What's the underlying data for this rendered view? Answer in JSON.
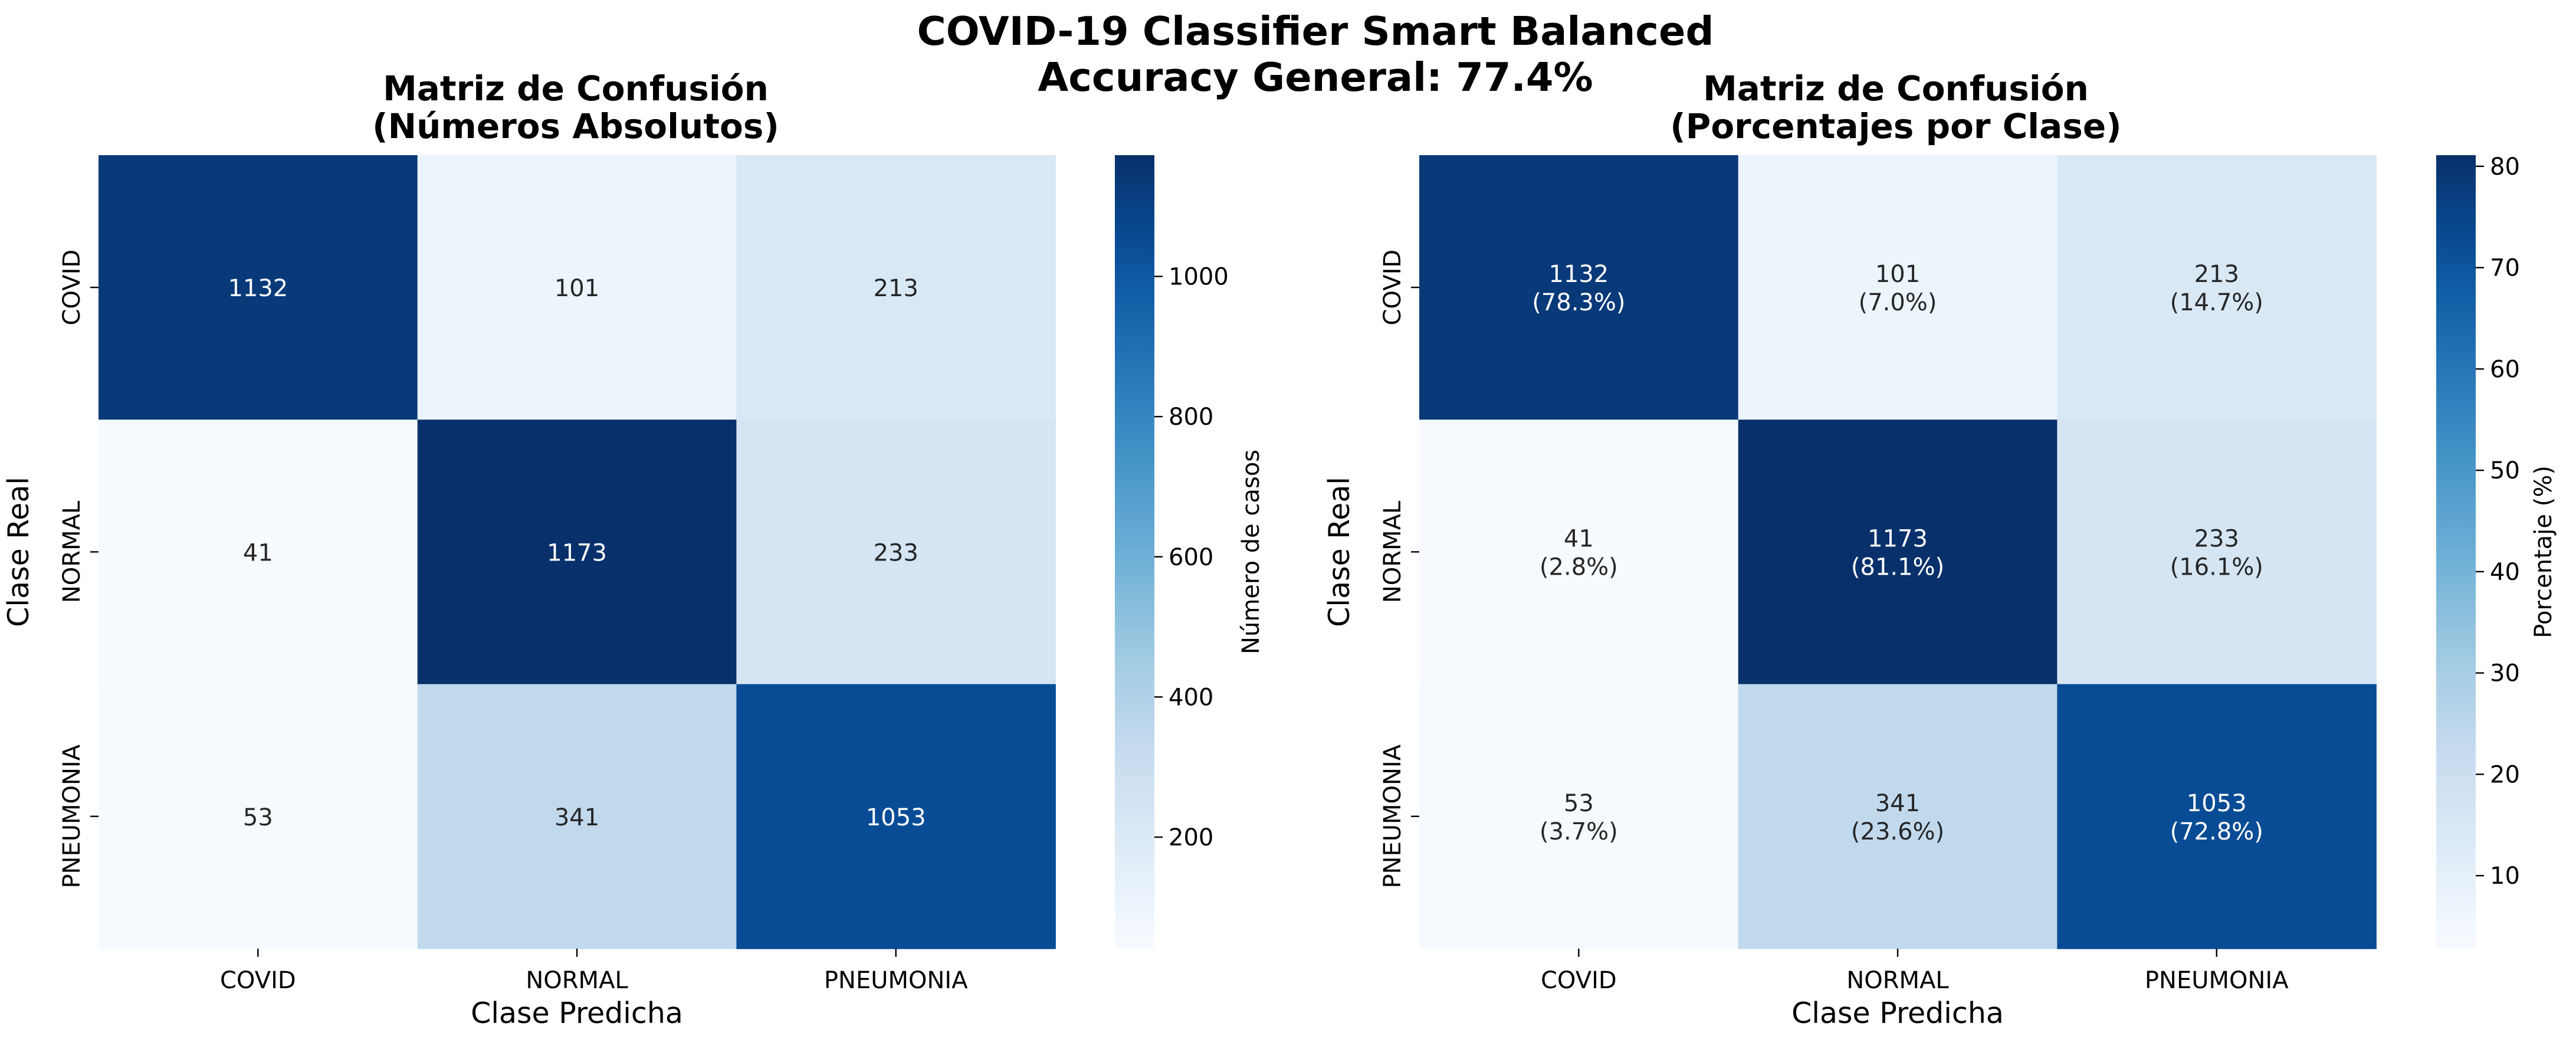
{
  "figure": {
    "title_line1": "COVID-19 Classifier Smart Balanced",
    "title_line2": "Accuracy General: 77.4%"
  },
  "chart_data": [
    {
      "type": "heatmap",
      "title": "Matriz de Confusión\n(Números Absolutos)",
      "title_lines": [
        "Matriz de Confusión",
        "(Números Absolutos)"
      ],
      "xlabel": "Clase Predicha",
      "ylabel": "Clase Real",
      "x_categories": [
        "COVID",
        "NORMAL",
        "PNEUMONIA"
      ],
      "y_categories": [
        "COVID",
        "NORMAL",
        "PNEUMONIA"
      ],
      "values": [
        [
          1132,
          101,
          213
        ],
        [
          41,
          1173,
          233
        ],
        [
          53,
          341,
          1053
        ]
      ],
      "cell_labels": [
        [
          "1132",
          "101",
          "213"
        ],
        [
          "41",
          "1173",
          "233"
        ],
        [
          "53",
          "341",
          "1053"
        ]
      ],
      "colorscale": "Blues",
      "vmin": 41,
      "vmax": 1173,
      "colorbar": {
        "label": "Número de casos",
        "ticks": [
          200,
          400,
          600,
          800,
          1000
        ],
        "tick_labels": [
          "200",
          "400",
          "600",
          "800",
          "1000"
        ]
      }
    },
    {
      "type": "heatmap",
      "title": "Matriz de Confusión\n(Porcentajes por Clase)",
      "title_lines": [
        "Matriz de Confusión",
        "(Porcentajes por Clase)"
      ],
      "xlabel": "Clase Predicha",
      "ylabel": "Clase Real",
      "x_categories": [
        "COVID",
        "NORMAL",
        "PNEUMONIA"
      ],
      "y_categories": [
        "COVID",
        "NORMAL",
        "PNEUMONIA"
      ],
      "values": [
        [
          78.3,
          7.0,
          14.7
        ],
        [
          2.8,
          81.1,
          16.1
        ],
        [
          3.7,
          23.6,
          72.8
        ]
      ],
      "cell_labels": [
        [
          [
            "1132",
            "(78.3%)"
          ],
          [
            "101",
            "(7.0%)"
          ],
          [
            "213",
            "(14.7%)"
          ]
        ],
        [
          [
            "41",
            "(2.8%)"
          ],
          [
            "1173",
            "(81.1%)"
          ],
          [
            "233",
            "(16.1%)"
          ]
        ],
        [
          [
            "53",
            "(3.7%)"
          ],
          [
            "341",
            "(23.6%)"
          ],
          [
            "1053",
            "(72.8%)"
          ]
        ]
      ],
      "colorscale": "Blues",
      "vmin": 2.8,
      "vmax": 81.1,
      "colorbar": {
        "label": "Porcentaje (%)",
        "ticks": [
          10,
          20,
          30,
          40,
          50,
          60,
          70,
          80
        ],
        "tick_labels": [
          "10",
          "20",
          "30",
          "40",
          "50",
          "60",
          "70",
          "80"
        ]
      }
    }
  ]
}
